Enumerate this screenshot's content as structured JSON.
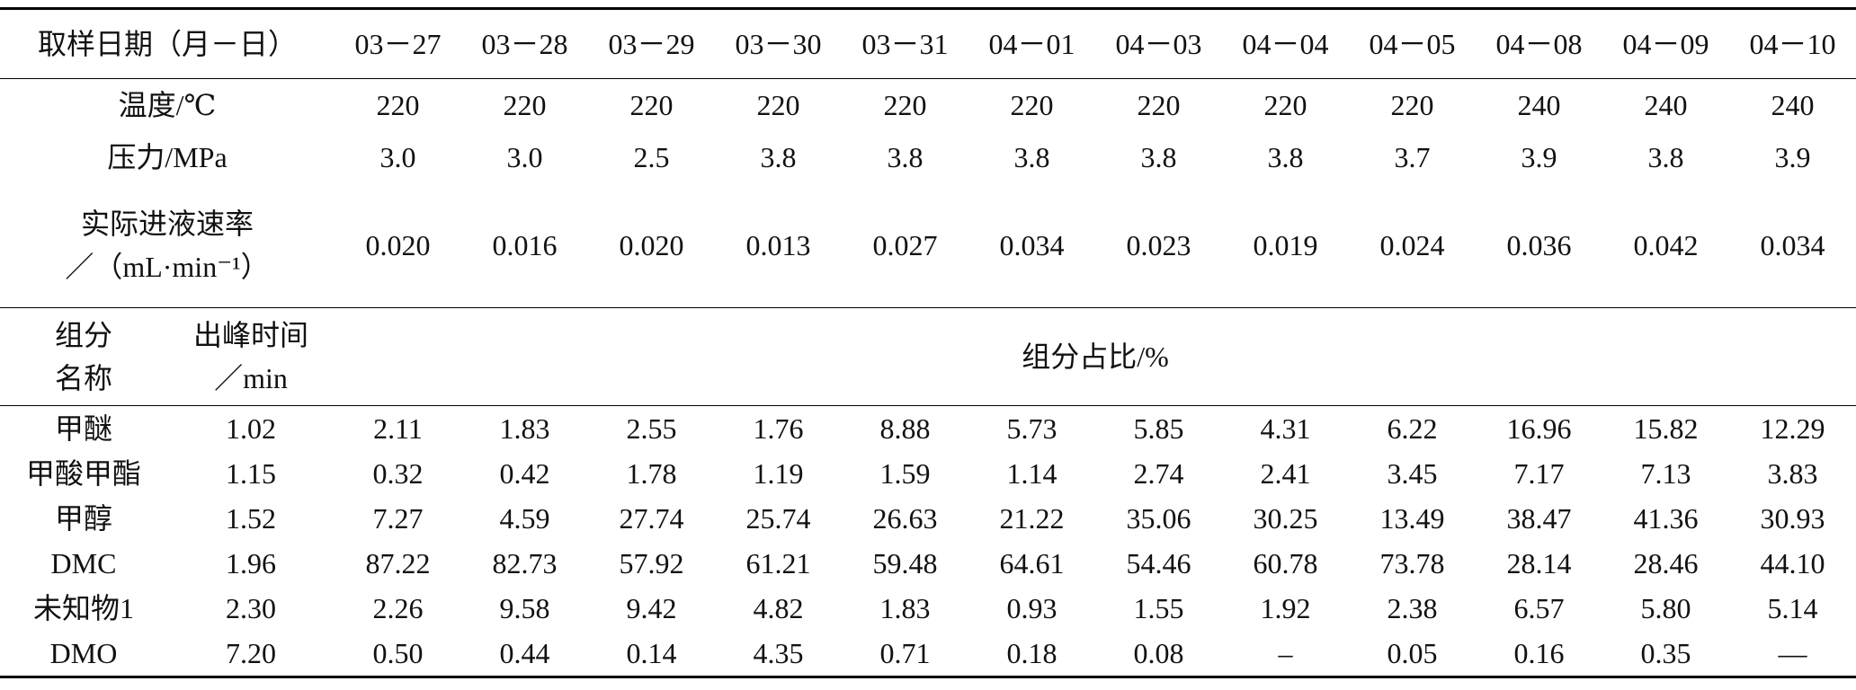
{
  "header": {
    "label": "取样日期（月－日）",
    "dates": [
      "03－27",
      "03－28",
      "03－29",
      "03－30",
      "03－31",
      "04－01",
      "04－03",
      "04－04",
      "04－05",
      "04－08",
      "04－09",
      "04－10"
    ]
  },
  "conditions": [
    {
      "label": [
        "温度/℃"
      ],
      "values": [
        "220",
        "220",
        "220",
        "220",
        "220",
        "220",
        "220",
        "220",
        "220",
        "240",
        "240",
        "240"
      ]
    },
    {
      "label": [
        "压力/MPa"
      ],
      "values": [
        "3.0",
        "3.0",
        "2.5",
        "3.8",
        "3.8",
        "3.8",
        "3.8",
        "3.8",
        "3.7",
        "3.9",
        "3.8",
        "3.9"
      ]
    },
    {
      "label": [
        "实际进液速率",
        "／（mL·min⁻¹）"
      ],
      "values": [
        "0.020",
        "0.016",
        "0.020",
        "0.013",
        "0.027",
        "0.034",
        "0.023",
        "0.019",
        "0.024",
        "0.036",
        "0.042",
        "0.034"
      ]
    }
  ],
  "components_header": {
    "name": [
      "组分",
      "名称"
    ],
    "time": [
      "出峰时间",
      "／min"
    ],
    "share": "组分占比/%"
  },
  "components": [
    {
      "name": "甲醚",
      "time": "1.02",
      "values": [
        "2.11",
        "1.83",
        "2.55",
        "1.76",
        "8.88",
        "5.73",
        "5.85",
        "4.31",
        "6.22",
        "16.96",
        "15.82",
        "12.29"
      ]
    },
    {
      "name": "甲酸甲酯",
      "time": "1.15",
      "values": [
        "0.32",
        "0.42",
        "1.78",
        "1.19",
        "1.59",
        "1.14",
        "2.74",
        "2.41",
        "3.45",
        "7.17",
        "7.13",
        "3.83"
      ]
    },
    {
      "name": "甲醇",
      "time": "1.52",
      "values": [
        "7.27",
        "4.59",
        "27.74",
        "25.74",
        "26.63",
        "21.22",
        "35.06",
        "30.25",
        "13.49",
        "38.47",
        "41.36",
        "30.93"
      ]
    },
    {
      "name": "DMC",
      "time": "1.96",
      "values": [
        "87.22",
        "82.73",
        "57.92",
        "61.21",
        "59.48",
        "64.61",
        "54.46",
        "60.78",
        "73.78",
        "28.14",
        "28.46",
        "44.10"
      ]
    },
    {
      "name": "未知物1",
      "time": "2.30",
      "values": [
        "2.26",
        "9.58",
        "9.42",
        "4.82",
        "1.83",
        "0.93",
        "1.55",
        "1.92",
        "2.38",
        "6.57",
        "5.80",
        "5.14"
      ]
    },
    {
      "name": "DMO",
      "time": "7.20",
      "values": [
        "0.50",
        "0.44",
        "0.14",
        "4.35",
        "0.71",
        "0.18",
        "0.08",
        "–",
        "0.05",
        "0.16",
        "0.35",
        "—"
      ]
    }
  ]
}
